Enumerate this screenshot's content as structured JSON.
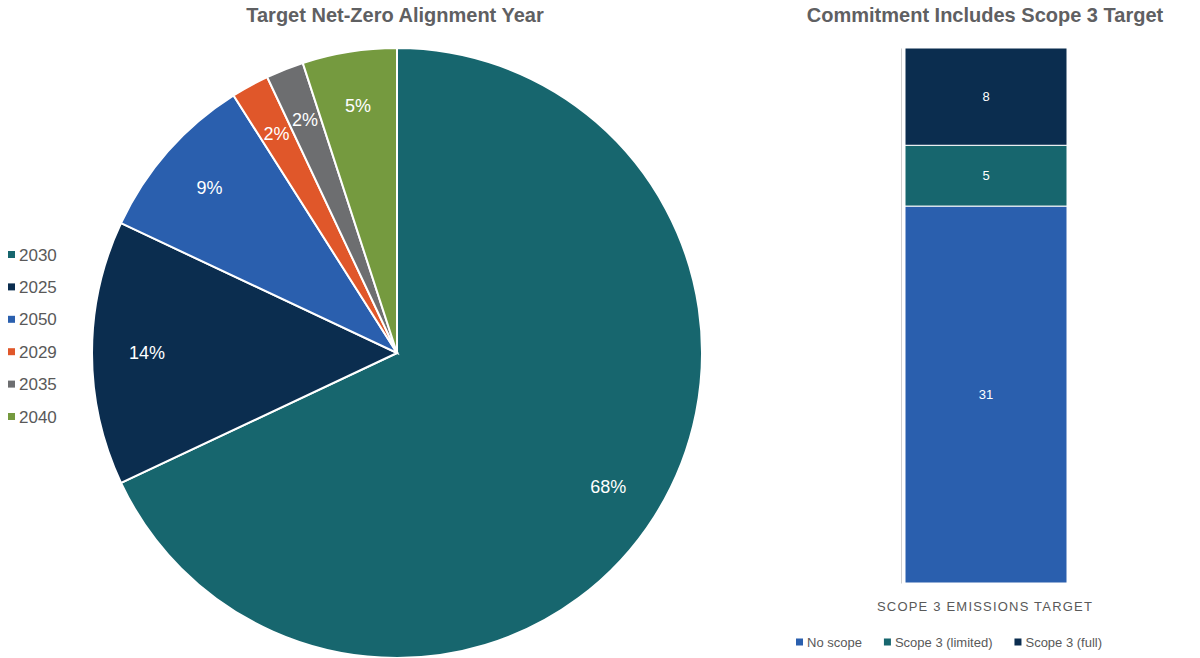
{
  "chart_data": [
    {
      "type": "pie",
      "title": "Target Net-Zero Alignment Year",
      "categories": [
        "2030",
        "2025",
        "2050",
        "2029",
        "2035",
        "2040"
      ],
      "values": [
        68,
        14,
        9,
        2,
        2,
        5
      ],
      "value_labels": [
        "68%",
        "14%",
        "9%",
        "2%",
        "2%",
        "5%"
      ],
      "colors": [
        "#17666e",
        "#0b2d4f",
        "#2a5fae",
        "#e0572a",
        "#6d6e70",
        "#759a3f"
      ],
      "data_labels": true,
      "legend": "left"
    },
    {
      "type": "bar",
      "title": "Commitment Includes Scope 3 Target",
      "x_label": "SCOPE 3 EMISSIONS TARGET",
      "categories": [
        null
      ],
      "series": [
        {
          "name": "No scope",
          "color": "#2a5fae",
          "values": [
            31
          ]
        },
        {
          "name": "Scope 3 (limited)",
          "color": "#17666e",
          "values": [
            5
          ]
        },
        {
          "name": "Scope 3 (full)",
          "color": "#0b2d4f",
          "values": [
            8
          ]
        }
      ],
      "ylim": [
        0,
        44
      ],
      "stacked": true,
      "data_labels": true,
      "tick_labels": false,
      "legend": "bottom"
    }
  ]
}
